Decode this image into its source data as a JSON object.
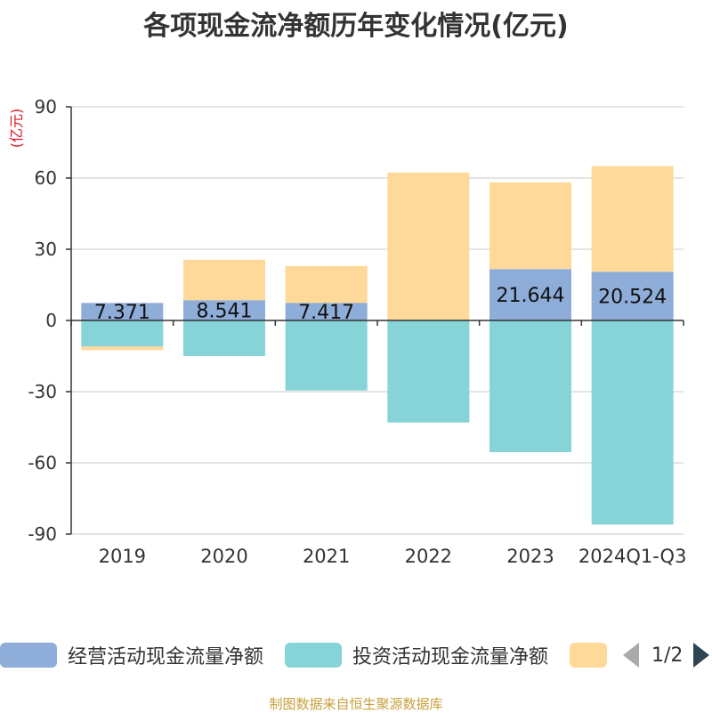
{
  "title": "各项现金流净额历年变化情况(亿元)",
  "unit_label": "(亿元)",
  "source": "制图数据来自恒生聚源数据库",
  "pager": {
    "text": "1/2"
  },
  "colors": {
    "operating": "#8eadd9",
    "investing": "#86d4d8",
    "financing": "#ffd999",
    "pager_active": "#2f4554",
    "pager_inactive": "#aaaaaa"
  },
  "legend": [
    {
      "name": "经营活动现金流量净额",
      "color": "#8eadd9"
    },
    {
      "name": "投资活动现金流量净额",
      "color": "#86d4d8"
    },
    {
      "name": "",
      "color": "#ffd999"
    }
  ],
  "chart_data": {
    "type": "bar",
    "stacked": true,
    "categories": [
      "2019",
      "2020",
      "2021",
      "2022",
      "2023",
      "2024Q1-Q3"
    ],
    "series": [
      {
        "name": "经营活动现金流量净额",
        "values": [
          7.371,
          8.541,
          7.417,
          0.3,
          21.644,
          20.524
        ],
        "labels": [
          "7.371",
          "8.541",
          "7.417",
          "",
          "21.644",
          "20.524"
        ]
      },
      {
        "name": "投资活动现金流量净额",
        "values": [
          -11.0,
          -15.0,
          -29.5,
          -43.0,
          -55.5,
          -86.0
        ]
      },
      {
        "values": [
          -1.5,
          17.0,
          15.5,
          62.0,
          36.5,
          44.5
        ]
      }
    ],
    "ylim": [
      -90,
      90
    ],
    "yticks": [
      90,
      60,
      30,
      0,
      -30,
      -60,
      -90
    ],
    "grid": true
  }
}
